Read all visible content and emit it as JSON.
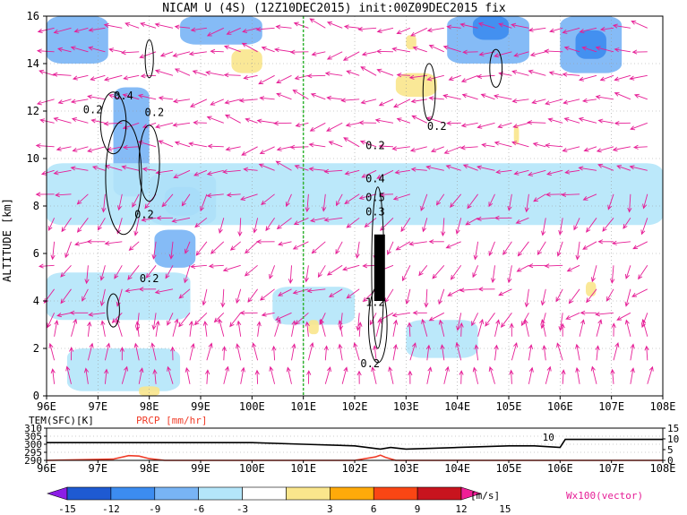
{
  "title": "NICAM U (4S) (12Z10DEC2015) init:00Z09DEC2015 fix",
  "chart_data": [
    {
      "type": "heatmap",
      "name": "zonal-wind-cross-section",
      "ylabel": "ALTITUDE [km]",
      "xlim": [
        96,
        108
      ],
      "ylim": [
        0,
        16
      ],
      "x_ticks": [
        "96E",
        "97E",
        "98E",
        "99E",
        "100E",
        "101E",
        "102E",
        "103E",
        "104E",
        "105E",
        "106E",
        "107E",
        "108E"
      ],
      "y_ticks": [
        "0",
        "2",
        "4",
        "6",
        "8",
        "10",
        "12",
        "14",
        "16"
      ],
      "grid": "dotted",
      "marker_line_lon": 101,
      "contour_labels": [
        {
          "text": "0.2",
          "lon": 96.9,
          "alt": 11.9
        },
        {
          "text": "0.4",
          "lon": 97.5,
          "alt": 12.5
        },
        {
          "text": "0.2",
          "lon": 98.1,
          "alt": 11.8
        },
        {
          "text": "0.2",
          "lon": 97.9,
          "alt": 7.5
        },
        {
          "text": "0.2",
          "lon": 98.0,
          "alt": 4.8
        },
        {
          "text": "0.2",
          "lon": 102.4,
          "alt": 10.4
        },
        {
          "text": "0.4",
          "lon": 102.4,
          "alt": 9.0
        },
        {
          "text": "0.5",
          "lon": 102.4,
          "alt": 8.2
        },
        {
          "text": "0.3",
          "lon": 102.4,
          "alt": 7.6
        },
        {
          "text": "1.2",
          "lon": 102.4,
          "alt": 3.8
        },
        {
          "text": "0.2",
          "lon": 102.3,
          "alt": 1.2
        },
        {
          "text": "0.2",
          "lon": 103.6,
          "alt": 11.2
        }
      ],
      "wind_regions": [
        {
          "level": -6,
          "lon": [
            96,
            97.2
          ],
          "alt": [
            14,
            16
          ]
        },
        {
          "level": -6,
          "lon": [
            98.6,
            100.2
          ],
          "alt": [
            14.8,
            16
          ]
        },
        {
          "level": -6,
          "lon": [
            103.8,
            105.4
          ],
          "alt": [
            14,
            16
          ]
        },
        {
          "level": -9,
          "lon": [
            104.3,
            105.0
          ],
          "alt": [
            15,
            16
          ]
        },
        {
          "level": -6,
          "lon": [
            106.0,
            107.2
          ],
          "alt": [
            13.6,
            16
          ]
        },
        {
          "level": -9,
          "lon": [
            106.3,
            106.9
          ],
          "alt": [
            14.2,
            15.4
          ]
        },
        {
          "level": -6,
          "lon": [
            97.3,
            98.0
          ],
          "alt": [
            8.4,
            13
          ]
        },
        {
          "level": -6,
          "lon": [
            98.0,
            99.3
          ],
          "alt": [
            7.2,
            9.4
          ]
        },
        {
          "level": -9,
          "lon": [
            98.3,
            99.0
          ],
          "alt": [
            7.6,
            8.8
          ]
        },
        {
          "level": -6,
          "lon": [
            98.1,
            98.9
          ],
          "alt": [
            5.4,
            7.0
          ]
        },
        {
          "level": -3,
          "lon": [
            96,
            108
          ],
          "alt": [
            7.2,
            9.8
          ]
        },
        {
          "level": -3,
          "lon": [
            96,
            98.8
          ],
          "alt": [
            3.2,
            5.2
          ]
        },
        {
          "level": -3,
          "lon": [
            100.4,
            102.0
          ],
          "alt": [
            3.0,
            4.6
          ]
        },
        {
          "level": -3,
          "lon": [
            103.0,
            104.4
          ],
          "alt": [
            1.6,
            3.2
          ]
        },
        {
          "level": -3,
          "lon": [
            96.4,
            98.6
          ],
          "alt": [
            0.2,
            2.0
          ]
        },
        {
          "level": 3,
          "lon": [
            99.6,
            100.2
          ],
          "alt": [
            13.6,
            14.6
          ]
        },
        {
          "level": 3,
          "lon": [
            102.8,
            103.6
          ],
          "alt": [
            12.6,
            13.6
          ]
        },
        {
          "level": 3,
          "lon": [
            101.1,
            101.3
          ],
          "alt": [
            2.6,
            3.2
          ]
        },
        {
          "level": 3,
          "lon": [
            103.0,
            103.2
          ],
          "alt": [
            14.6,
            15.2
          ]
        },
        {
          "level": 3,
          "lon": [
            105.1,
            105.2
          ],
          "alt": [
            10.6,
            11.4
          ]
        },
        {
          "level": 3,
          "lon": [
            106.5,
            106.7
          ],
          "alt": [
            4.2,
            4.8
          ]
        },
        {
          "level": 3,
          "lon": [
            97.8,
            98.2
          ],
          "alt": [
            0,
            0.4
          ]
        }
      ],
      "wind_vectors": "Wx100(vector)"
    },
    {
      "type": "line",
      "name": "surface-panel",
      "xlim": [
        96,
        108
      ],
      "series": [
        {
          "name": "TEM(SFC)[K]",
          "axis": "left",
          "ylim": [
            290,
            310
          ],
          "x": [
            96,
            97,
            98,
            99,
            100,
            101,
            102,
            102.5,
            102.7,
            103,
            104,
            105,
            105.5,
            106,
            106.1,
            107,
            108
          ],
          "y": [
            301,
            301,
            301,
            301,
            301,
            300,
            299,
            297,
            298,
            297,
            298,
            299,
            299,
            298,
            303,
            303,
            303
          ]
        },
        {
          "name": "PRCP [mm/hr]",
          "axis": "right",
          "ylim": [
            0,
            15
          ],
          "x": [
            96,
            97.3,
            97.6,
            97.8,
            98,
            98.3,
            99,
            101,
            102,
            102.4,
            102.5,
            102.6,
            102.8,
            103,
            108
          ],
          "y": [
            0,
            0.6,
            2.2,
            2.0,
            0.8,
            0,
            0,
            0,
            0,
            1.6,
            2.4,
            1.4,
            0,
            0,
            0
          ]
        }
      ],
      "left_ticks": [
        "290",
        "295",
        "300",
        "305",
        "310"
      ],
      "right_ticks": [
        "0",
        "5",
        "10",
        "15"
      ],
      "x_ticks": [
        "96E",
        "97E",
        "98E",
        "99E",
        "100E",
        "101E",
        "102E",
        "103E",
        "104E",
        "105E",
        "106E",
        "107E",
        "108E"
      ],
      "annotations": [
        {
          "text": "10",
          "lon": 105.9
        }
      ]
    }
  ],
  "colorbar": {
    "levels": [
      "-15",
      "-12",
      "-9",
      "-6",
      "-3",
      "3",
      "6",
      "9",
      "12",
      "15"
    ],
    "unit": "[m/s]",
    "colors": [
      "#8c1ee6",
      "#1e5ad2",
      "#3c8cf0",
      "#78b4f5",
      "#b4e6fa",
      "#ffffff",
      "#fae68c",
      "#ffaa0a",
      "#fa4614",
      "#c8141e",
      "#f01e96"
    ]
  },
  "vector_label": "Wx100(vector)",
  "colors": {
    "vector": "#e61e96",
    "marker_line": "#32b432",
    "prcp": "#f03c28",
    "contour": "#000000"
  }
}
